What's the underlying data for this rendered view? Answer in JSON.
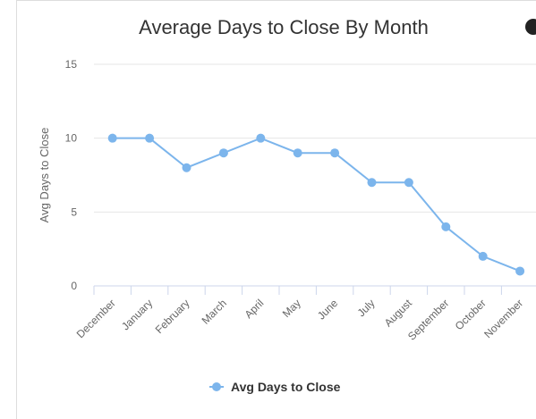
{
  "chart_data": {
    "type": "line",
    "title": "Average Days to Close By Month",
    "y_label": "Avg Days to Close",
    "categories": [
      "December",
      "January",
      "February",
      "March",
      "April",
      "May",
      "June",
      "July",
      "August",
      "September",
      "October",
      "November"
    ],
    "series": [
      {
        "name": "Avg Days to Close",
        "color": "#7cb5ec",
        "values": [
          10,
          10,
          8,
          9,
          10,
          9,
          9,
          7,
          7,
          4,
          2,
          1
        ]
      }
    ],
    "ylim": [
      0,
      15
    ],
    "yticks": [
      0,
      5,
      10,
      15
    ],
    "grid": true,
    "legend": "bottom"
  }
}
